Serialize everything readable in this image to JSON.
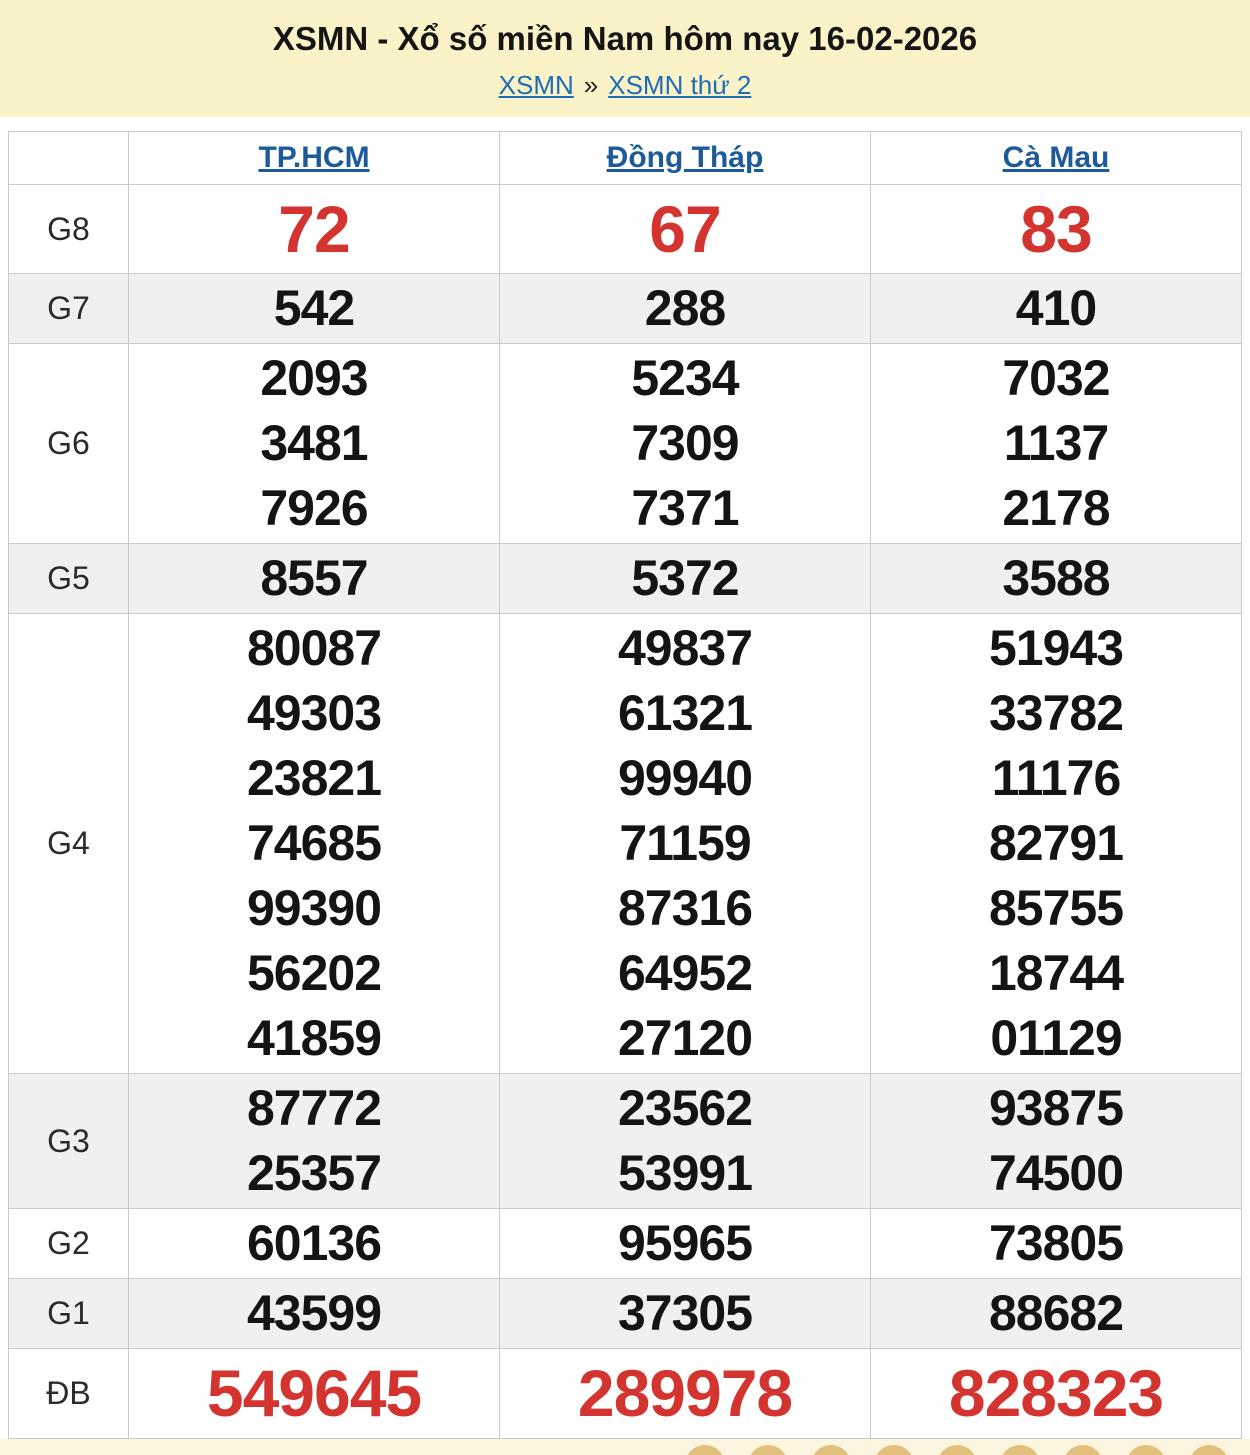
{
  "banner": {
    "title": "XSMN - Xổ số miền Nam hôm nay 16-02-2026",
    "breadcrumb": {
      "home": "XSMN",
      "separator": "»",
      "current": "XSMN thứ 2"
    }
  },
  "results_table": {
    "columns": [
      "TP.HCM",
      "Đồng Tháp",
      "Cà Mau"
    ],
    "rows": [
      {
        "label": "G8",
        "style": "red",
        "values": [
          [
            "72"
          ],
          [
            "67"
          ],
          [
            "83"
          ]
        ]
      },
      {
        "label": "G7",
        "style": "normal",
        "values": [
          [
            "542"
          ],
          [
            "288"
          ],
          [
            "410"
          ]
        ]
      },
      {
        "label": "G6",
        "style": "normal",
        "values": [
          [
            "2093",
            "3481",
            "7926"
          ],
          [
            "5234",
            "7309",
            "7371"
          ],
          [
            "7032",
            "1137",
            "2178"
          ]
        ]
      },
      {
        "label": "G5",
        "style": "normal",
        "values": [
          [
            "8557"
          ],
          [
            "5372"
          ],
          [
            "3588"
          ]
        ]
      },
      {
        "label": "G4",
        "style": "normal",
        "values": [
          [
            "80087",
            "49303",
            "23821",
            "74685",
            "99390",
            "56202",
            "41859"
          ],
          [
            "49837",
            "61321",
            "99940",
            "71159",
            "87316",
            "64952",
            "27120"
          ],
          [
            "51943",
            "33782",
            "11176",
            "82791",
            "85755",
            "18744",
            "01129"
          ]
        ]
      },
      {
        "label": "G3",
        "style": "normal",
        "values": [
          [
            "87772",
            "25357"
          ],
          [
            "23562",
            "53991"
          ],
          [
            "93875",
            "74500"
          ]
        ]
      },
      {
        "label": "G2",
        "style": "normal",
        "values": [
          [
            "60136"
          ],
          [
            "95965"
          ],
          [
            "73805"
          ]
        ]
      },
      {
        "label": "G1",
        "style": "normal",
        "values": [
          [
            "43599"
          ],
          [
            "37305"
          ],
          [
            "88682"
          ]
        ]
      },
      {
        "label": "ĐB",
        "style": "red",
        "values": [
          [
            "549645"
          ],
          [
            "289978"
          ],
          [
            "828323"
          ]
        ]
      }
    ]
  },
  "bottom_strip": {
    "ball_count": 9
  },
  "colors": {
    "banner_bg": "#faf3c8",
    "link_blue": "#1e6bb8",
    "header_link_blue": "#1d5a99",
    "highlight_red": "#d3342f",
    "shaded_row": "#f0f0f0",
    "strip_bg": "#fcf6e0",
    "ball_gold": "#e3c07b"
  }
}
